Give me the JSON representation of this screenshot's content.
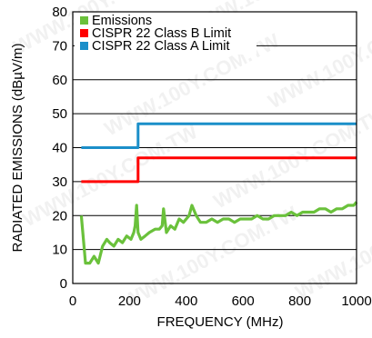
{
  "chart_data": {
    "type": "line",
    "xlabel": "FREQUENCY (MHz)",
    "ylabel": "RADIATED EMISSIONS (dBµV/m)",
    "xlim": [
      0,
      1000
    ],
    "ylim": [
      0,
      80
    ],
    "xticks": [
      "0",
      "200",
      "400",
      "600",
      "800",
      "1000"
    ],
    "yticks": [
      "0",
      "10",
      "20",
      "30",
      "40",
      "50",
      "60",
      "70",
      "80"
    ],
    "grid": "horizontal lines at each major y tick, no vertical grid",
    "legend_position": "top-left",
    "watermark": "WWW.100Y.COM.TW",
    "series": [
      {
        "name": "Emissions",
        "color": "#6ac13b",
        "x": [
          30,
          45,
          60,
          75,
          90,
          105,
          120,
          130,
          145,
          160,
          175,
          190,
          205,
          215,
          220,
          225,
          230,
          240,
          255,
          270,
          290,
          305,
          315,
          320,
          330,
          345,
          360,
          370,
          375,
          390,
          400,
          410,
          420,
          435,
          450,
          470,
          490,
          510,
          530,
          550,
          570,
          590,
          610,
          630,
          650,
          670,
          690,
          710,
          730,
          750,
          770,
          790,
          810,
          830,
          850,
          870,
          890,
          910,
          930,
          950,
          970,
          990,
          1000
        ],
        "y": [
          20,
          6,
          6,
          8,
          6,
          11,
          13,
          12,
          11,
          13,
          12,
          14,
          13,
          15,
          17,
          23,
          15,
          13,
          14,
          15,
          16,
          16,
          17,
          22,
          15,
          17,
          16,
          18,
          19,
          18,
          19,
          20,
          23,
          20,
          18,
          18,
          19,
          18,
          19,
          19,
          18,
          19,
          19,
          19,
          20,
          19,
          19,
          20,
          20,
          20,
          21,
          20,
          21,
          21,
          21,
          22,
          22,
          21,
          22,
          22,
          23,
          23,
          24
        ]
      },
      {
        "name": "CISPR 22 Class B Limit",
        "color": "#ff0000",
        "x": [
          30,
          230,
          230,
          1000
        ],
        "y": [
          30,
          30,
          37,
          37
        ]
      },
      {
        "name": "CISPR 22 Class A Limit",
        "color": "#1b8fc9",
        "x": [
          30,
          230,
          230,
          1000
        ],
        "y": [
          40,
          40,
          47,
          47
        ]
      }
    ]
  }
}
